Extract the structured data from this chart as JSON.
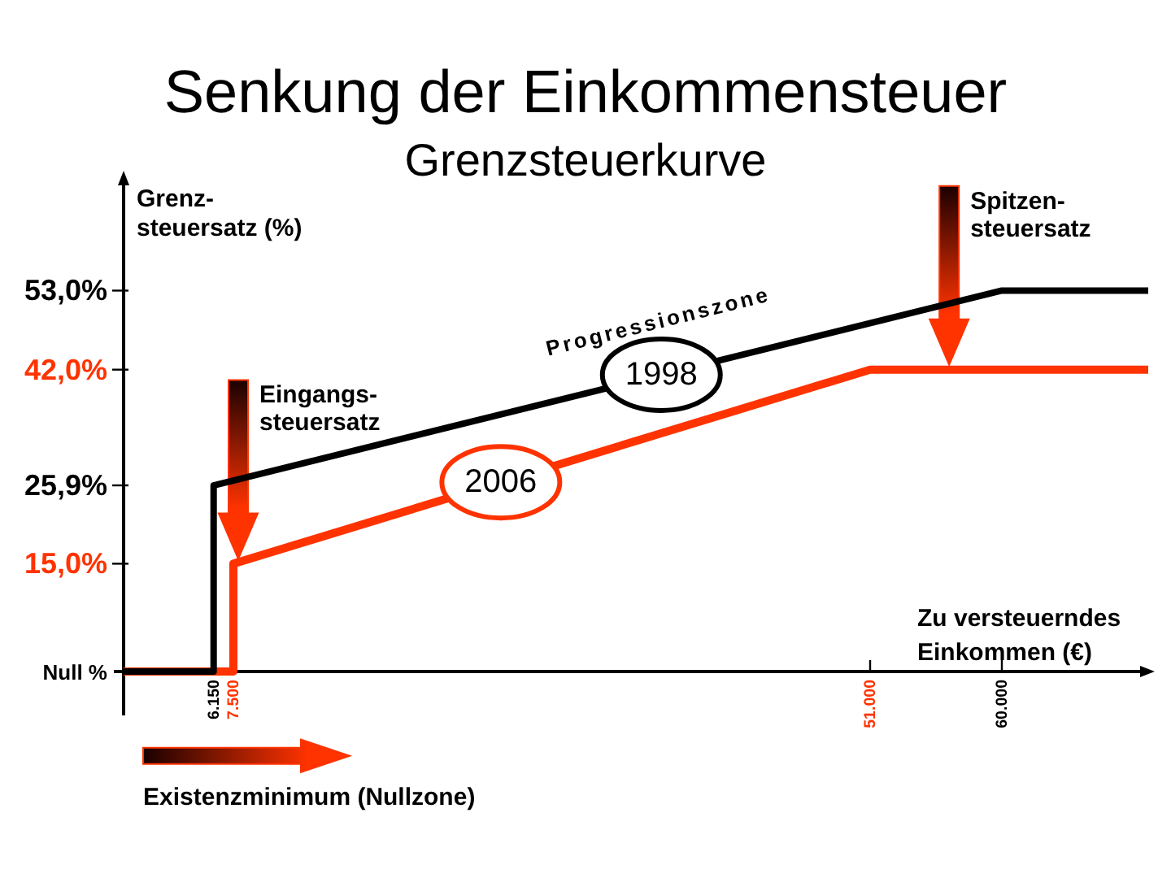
{
  "chart_data": {
    "type": "line",
    "title": "Senkung der Einkommensteuer",
    "subtitle": "Grenzsteuerkurve",
    "xlabel": "Zu versteuerndes\nEinkommen (€)",
    "ylabel": "Grenz-\nsteuersatz (%)",
    "series": [
      {
        "name": "1998",
        "color": "#000000",
        "x": [
          0,
          6150,
          6150,
          60000,
          70000
        ],
        "values": [
          0,
          0,
          25.9,
          53,
          53
        ]
      },
      {
        "name": "2006",
        "color": "#ff3300",
        "x": [
          0,
          7500,
          7500,
          51000,
          70000
        ],
        "values": [
          0,
          0,
          15,
          42,
          42
        ]
      }
    ],
    "xlim": [
      0,
      70000
    ],
    "xticks": [
      {
        "value": 6150,
        "label": "6.150"
      },
      {
        "value": 7500,
        "label": "7.500"
      },
      {
        "value": 51000,
        "label": "51.000"
      },
      {
        "value": 60000,
        "label": "60.000"
      }
    ],
    "ylim": [
      0,
      69
    ],
    "yticks": [
      {
        "value": 0,
        "label": "Null %"
      },
      {
        "value": 15,
        "label": "15,0%"
      },
      {
        "value": 25.9,
        "label": "25,9%"
      },
      {
        "value": 42,
        "label": "42,0%"
      },
      {
        "value": 53,
        "label": "53,0%"
      }
    ],
    "annotations": [
      "Progressionszone",
      "Eingangs-\nsteuersatz",
      "Spitzen-\nsteuersatz",
      "Existenzminimum (Nullzone)"
    ]
  }
}
